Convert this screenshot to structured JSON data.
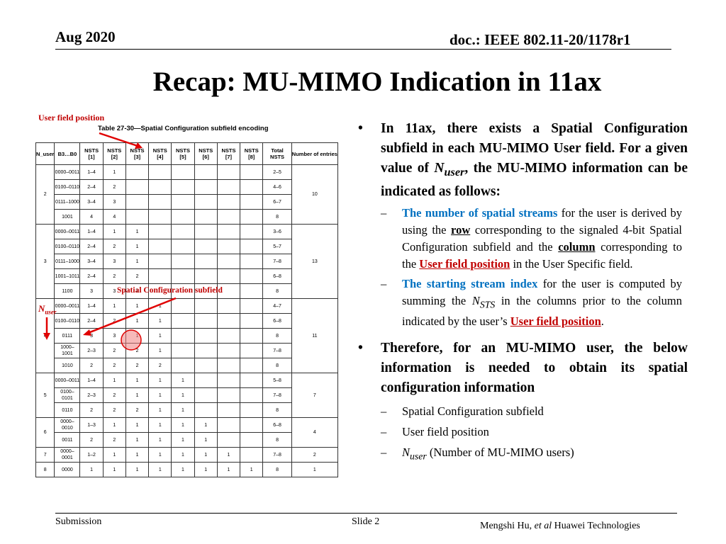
{
  "header": {
    "date": "Aug 2020",
    "doc": "doc.: IEEE 802.11-20/1178r1"
  },
  "title": "Recap: MU-MIMO Indication in 11ax",
  "annotations": {
    "user_field_position": "User field position",
    "spatial_config_subfield": "Spatial Configuration subfield",
    "nuser_main": "N",
    "nuser_sub": "user"
  },
  "table": {
    "caption": "Table 27-30—Spatial Configuration subfield encoding",
    "headers": [
      "N_user",
      "B3…B0",
      "NSTS [1]",
      "NSTS [2]",
      "NSTS [3]",
      "NSTS [4]",
      "NSTS [5]",
      "NSTS [6]",
      "NSTS [7]",
      "NSTS [8]",
      "Total NSTS",
      "Number of entries"
    ],
    "groups": [
      {
        "nuser": "2",
        "entries": "10",
        "rows": [
          {
            "bits": "0000–0011",
            "nsts": [
              "1–4",
              "1",
              "",
              "",
              "",
              "",
              "",
              ""
            ],
            "total": "2–5"
          },
          {
            "bits": "0100–0110",
            "nsts": [
              "2–4",
              "2",
              "",
              "",
              "",
              "",
              "",
              ""
            ],
            "total": "4–6"
          },
          {
            "bits": "0111–1000",
            "nsts": [
              "3–4",
              "3",
              "",
              "",
              "",
              "",
              "",
              ""
            ],
            "total": "6–7"
          },
          {
            "bits": "1001",
            "nsts": [
              "4",
              "4",
              "",
              "",
              "",
              "",
              "",
              ""
            ],
            "total": "8"
          }
        ]
      },
      {
        "nuser": "3",
        "entries": "13",
        "rows": [
          {
            "bits": "0000–0011",
            "nsts": [
              "1–4",
              "1",
              "1",
              "",
              "",
              "",
              "",
              ""
            ],
            "total": "3–6"
          },
          {
            "bits": "0100–0110",
            "nsts": [
              "2–4",
              "2",
              "1",
              "",
              "",
              "",
              "",
              ""
            ],
            "total": "5–7"
          },
          {
            "bits": "0111–1000",
            "nsts": [
              "3–4",
              "3",
              "1",
              "",
              "",
              "",
              "",
              ""
            ],
            "total": "7–8"
          },
          {
            "bits": "1001–1011",
            "nsts": [
              "2–4",
              "2",
              "2",
              "",
              "",
              "",
              "",
              ""
            ],
            "total": "6–8"
          },
          {
            "bits": "1100",
            "nsts": [
              "3",
              "3",
              "2",
              "",
              "",
              "",
              "",
              ""
            ],
            "total": "8"
          }
        ]
      },
      {
        "nuser": "4",
        "entries": "11",
        "rows": [
          {
            "bits": "0000–0011",
            "nsts": [
              "1–4",
              "1",
              "1",
              "1",
              "",
              "",
              "",
              ""
            ],
            "total": "4–7"
          },
          {
            "bits": "0100–0110",
            "nsts": [
              "2–4",
              "2",
              "1",
              "1",
              "",
              "",
              "",
              ""
            ],
            "total": "6–8"
          },
          {
            "bits": "0111",
            "nsts": [
              "3",
              "3",
              "1",
              "1",
              "",
              "",
              "",
              ""
            ],
            "total": "8"
          },
          {
            "bits": "1000–1001",
            "nsts": [
              "2–3",
              "2",
              "2",
              "1",
              "",
              "",
              "",
              ""
            ],
            "total": "7–8"
          },
          {
            "bits": "1010",
            "nsts": [
              "2",
              "2",
              "2",
              "2",
              "",
              "",
              "",
              ""
            ],
            "total": "8"
          }
        ]
      },
      {
        "nuser": "5",
        "entries": "7",
        "rows": [
          {
            "bits": "0000–0011",
            "nsts": [
              "1–4",
              "1",
              "1",
              "1",
              "1",
              "",
              "",
              ""
            ],
            "total": "5–8"
          },
          {
            "bits": "0100–0101",
            "nsts": [
              "2–3",
              "2",
              "1",
              "1",
              "1",
              "",
              "",
              ""
            ],
            "total": "7–8"
          },
          {
            "bits": "0110",
            "nsts": [
              "2",
              "2",
              "2",
              "1",
              "1",
              "",
              "",
              ""
            ],
            "total": "8"
          }
        ]
      },
      {
        "nuser": "6",
        "entries": "4",
        "rows": [
          {
            "bits": "0000–0010",
            "nsts": [
              "1–3",
              "1",
              "1",
              "1",
              "1",
              "1",
              "",
              ""
            ],
            "total": "6–8"
          },
          {
            "bits": "0011",
            "nsts": [
              "2",
              "2",
              "1",
              "1",
              "1",
              "1",
              "",
              ""
            ],
            "total": "8"
          }
        ]
      },
      {
        "nuser": "7",
        "entries": "2",
        "rows": [
          {
            "bits": "0000–0001",
            "nsts": [
              "1–2",
              "1",
              "1",
              "1",
              "1",
              "1",
              "1",
              ""
            ],
            "total": "7–8"
          }
        ]
      },
      {
        "nuser": "8",
        "entries": "1",
        "rows": [
          {
            "bits": "0000",
            "nsts": [
              "1",
              "1",
              "1",
              "1",
              "1",
              "1",
              "1",
              "1"
            ],
            "total": "8"
          }
        ]
      }
    ]
  },
  "bullets": {
    "b1": {
      "a": "In 11ax, there exists a Spatial Configuration subfield in each MU-MIMO User field. For a given value of ",
      "n": "N",
      "nsub": "user",
      "b": ", the MU-MIMO information can be indicated as follows:"
    },
    "s1": {
      "a": "The number of spatial streams",
      "b": " for the user is derived by using the ",
      "row": "row",
      "c": " corresponding to the signaled 4-bit Spatial Configuration subfield and the ",
      "column": "column",
      "d": " corresponding to the ",
      "ufp": "User field position",
      "e": " in the User Specific field."
    },
    "s2": {
      "a": "The starting stream index",
      "b": " for the user is computed by summing the ",
      "n": "N",
      "nsub": "STS",
      "c": " in the columns prior to the column indicated by the user’s ",
      "ufp": "User field position",
      "d": "."
    },
    "b2": "Therefore, for an MU-MIMO user, the below information is needed to obtain its spatial configuration information",
    "s3": "Spatial Configuration subfield",
    "s4": "User field position",
    "s5": {
      "n": "N",
      "nsub": "user",
      "text": " (Number of MU-MIMO users)"
    }
  },
  "footer": {
    "submission": "Submission",
    "slide": "Slide 2",
    "author_a": "Mengshi Hu, ",
    "author_etal": "et al",
    "author_b": " Huawei Technologies"
  },
  "colors": {
    "accent_red": "#c00000",
    "accent_blue": "#0070c0",
    "highlight_circle": "#f08080"
  }
}
